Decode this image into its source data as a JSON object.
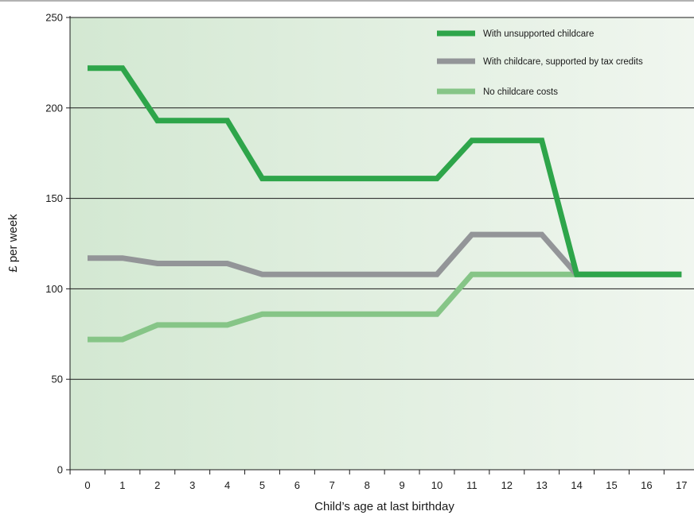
{
  "chart_data": {
    "type": "line",
    "xlabel": "Child’s age at last birthday",
    "ylabel": "£ per week",
    "xlim": [
      0,
      17
    ],
    "ylim": [
      0,
      250
    ],
    "grid": true,
    "legend_position": "top-right",
    "x": [
      0,
      1,
      2,
      3,
      4,
      5,
      6,
      7,
      8,
      9,
      10,
      11,
      12,
      13,
      14,
      15,
      16,
      17
    ],
    "x_ticks": [
      "0",
      "1",
      "2",
      "3",
      "4",
      "5",
      "6",
      "7",
      "8",
      "9",
      "10",
      "11",
      "12",
      "13",
      "14",
      "15",
      "16",
      "17"
    ],
    "y_ticks": [
      "0",
      "50",
      "100",
      "150",
      "200",
      "250"
    ],
    "y_tick_values": [
      0,
      50,
      100,
      150,
      200,
      250
    ],
    "series": [
      {
        "name": "With unsupported childcare",
        "color": "#2ea54a",
        "values": [
          222,
          222,
          193,
          193,
          193,
          161,
          161,
          161,
          161,
          161,
          161,
          182,
          182,
          182,
          108,
          108,
          108,
          108
        ]
      },
      {
        "name": "With childcare, supported by tax credits",
        "color": "#939598",
        "values": [
          117,
          117,
          114,
          114,
          114,
          108,
          108,
          108,
          108,
          108,
          108,
          130,
          130,
          130,
          108,
          108,
          108,
          108
        ]
      },
      {
        "name": "No childcare costs",
        "color": "#86c587",
        "values": [
          72,
          72,
          80,
          80,
          80,
          86,
          86,
          86,
          86,
          86,
          86,
          108,
          108,
          108,
          108,
          108,
          108,
          108
        ]
      }
    ],
    "colors": {
      "background_left": "#d3e8d2",
      "background_right": "#f0f6ef",
      "gridline": "#1a1a1a",
      "axis": "#1a1a1a"
    }
  }
}
